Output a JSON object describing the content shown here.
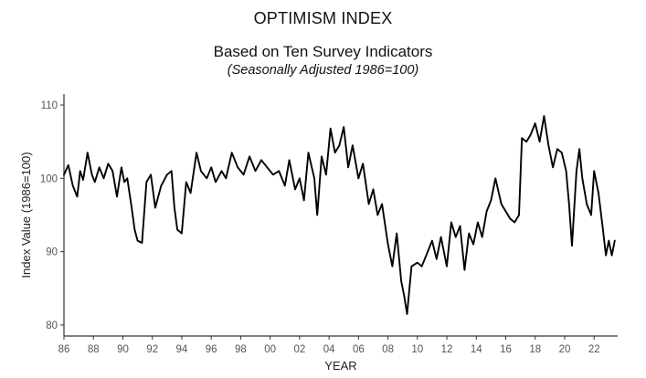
{
  "chart_data": {
    "type": "line",
    "title": "OPTIMISM INDEX",
    "subtitle": "Based on Ten Survey Indicators",
    "subtitle2": "(Seasonally Adjusted 1986=100)",
    "xlabel": "YEAR",
    "ylabel": "Index Value (1986=100)",
    "xlim": [
      1986,
      2023.6
    ],
    "ylim": [
      78.5,
      111.5
    ],
    "x_ticks": [
      1986,
      1988,
      1990,
      1992,
      1994,
      1996,
      1998,
      2000,
      2002,
      2004,
      2006,
      2008,
      2010,
      2012,
      2014,
      2016,
      2018,
      2020,
      2022
    ],
    "x_tick_labels": [
      "86",
      "88",
      "90",
      "92",
      "94",
      "96",
      "98",
      "00",
      "02",
      "04",
      "06",
      "08",
      "10",
      "12",
      "14",
      "16",
      "18",
      "20",
      "22"
    ],
    "y_ticks": [
      80,
      90,
      100,
      110
    ],
    "y_tick_labels": [
      "80",
      "90",
      "100",
      "110"
    ],
    "grid": false,
    "series": [
      {
        "color": "#000000",
        "x": [
          1986.0,
          1986.3,
          1986.6,
          1986.9,
          1987.1,
          1987.3,
          1987.6,
          1987.9,
          1988.1,
          1988.4,
          1988.7,
          1989.0,
          1989.3,
          1989.6,
          1989.9,
          1990.1,
          1990.3,
          1990.6,
          1990.8,
          1991.0,
          1991.3,
          1991.6,
          1991.9,
          1992.2,
          1992.6,
          1993.0,
          1993.3,
          1993.5,
          1993.7,
          1994.0,
          1994.3,
          1994.6,
          1995.0,
          1995.3,
          1995.7,
          1996.0,
          1996.3,
          1996.7,
          1997.0,
          1997.4,
          1997.8,
          1998.2,
          1998.6,
          1999.0,
          1999.4,
          1999.8,
          2000.2,
          2000.6,
          2001.0,
          2001.3,
          2001.7,
          2002.0,
          2002.3,
          2002.6,
          2003.0,
          2003.2,
          2003.5,
          2003.8,
          2004.1,
          2004.4,
          2004.7,
          2005.0,
          2005.3,
          2005.6,
          2006.0,
          2006.3,
          2006.7,
          2007.0,
          2007.3,
          2007.6,
          2008.0,
          2008.3,
          2008.6,
          2008.9,
          2009.1,
          2009.3,
          2009.6,
          2010.0,
          2010.3,
          2010.6,
          2011.0,
          2011.3,
          2011.6,
          2012.0,
          2012.3,
          2012.6,
          2012.9,
          2013.2,
          2013.5,
          2013.8,
          2014.1,
          2014.4,
          2014.7,
          2015.0,
          2015.3,
          2015.7,
          2016.0,
          2016.3,
          2016.6,
          2016.9,
          2017.1,
          2017.4,
          2017.7,
          2018.0,
          2018.3,
          2018.6,
          2018.9,
          2019.2,
          2019.5,
          2019.8,
          2020.1,
          2020.3,
          2020.5,
          2020.8,
          2021.0,
          2021.2,
          2021.5,
          2021.8,
          2022.0,
          2022.3,
          2022.6,
          2022.8,
          2023.0,
          2023.2,
          2023.4
        ],
        "y": [
          100.5,
          101.8,
          99.0,
          97.5,
          101.0,
          99.8,
          103.5,
          100.5,
          99.5,
          101.5,
          100.0,
          102.0,
          101.0,
          97.5,
          101.5,
          99.5,
          100.0,
          96.0,
          93.0,
          91.5,
          91.2,
          99.5,
          100.5,
          96.0,
          99.0,
          100.5,
          101.0,
          96.0,
          93.0,
          92.5,
          99.5,
          98.0,
          103.5,
          101.0,
          100.0,
          101.5,
          99.5,
          101.0,
          100.0,
          103.5,
          101.5,
          100.5,
          103.0,
          101.0,
          102.5,
          101.5,
          100.5,
          101.0,
          99.0,
          102.5,
          98.5,
          100.0,
          97.0,
          103.5,
          100.0,
          95.0,
          103.0,
          100.5,
          106.8,
          103.5,
          104.5,
          107.0,
          101.5,
          104.5,
          100.0,
          102.0,
          96.5,
          98.5,
          95.0,
          96.5,
          91.0,
          88.0,
          92.5,
          86.0,
          84.0,
          81.5,
          88.0,
          88.5,
          88.0,
          89.5,
          91.5,
          89.0,
          92.0,
          88.0,
          94.0,
          92.0,
          93.5,
          87.5,
          92.5,
          91.0,
          94.0,
          92.0,
          95.5,
          97.0,
          100.0,
          96.5,
          95.5,
          94.5,
          94.0,
          95.0,
          105.5,
          105.0,
          106.0,
          107.5,
          105.0,
          108.5,
          104.5,
          101.5,
          104.0,
          103.5,
          101.0,
          96.5,
          90.8,
          101.0,
          104.0,
          100.0,
          96.5,
          95.0,
          101.0,
          98.0,
          93.0,
          89.5,
          91.5,
          89.5,
          91.5
        ]
      }
    ]
  }
}
